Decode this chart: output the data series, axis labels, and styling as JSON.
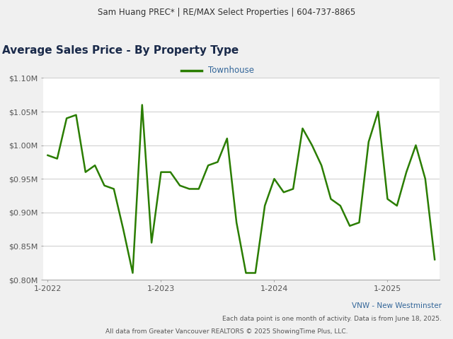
{
  "header": "Sam Huang PREC* | RE/MAX Select Properties | 604-737-8865",
  "title": "Average Sales Price - By Property Type",
  "legend_label": "Townhouse",
  "line_color": "#2a7d00",
  "footer_left": "All data from Greater Vancouver REALTORS © 2025 ShowingTime Plus, LLC.",
  "footer_right_line1": "VNW - New Westminster",
  "footer_right_line2": "Each data point is one month of activity. Data is from June 18, 2025.",
  "ylim": [
    800000,
    1100000
  ],
  "yticks": [
    800000,
    850000,
    900000,
    950000,
    1000000,
    1050000,
    1100000
  ],
  "ytick_labels": [
    "$0.80M",
    "$0.85M",
    "$0.90M",
    "$0.95M",
    "$1.00M",
    "$1.05M",
    "$1.10M"
  ],
  "x_tick_labels": [
    "1-2022",
    "1-2023",
    "1-2024",
    "1-2025"
  ],
  "values": [
    985000,
    980000,
    1040000,
    1045000,
    960000,
    970000,
    940000,
    935000,
    875000,
    810000,
    1060000,
    855000,
    960000,
    960000,
    940000,
    935000,
    935000,
    970000,
    975000,
    1010000,
    885000,
    810000,
    810000,
    910000,
    950000,
    930000,
    935000,
    1025000,
    1000000,
    970000,
    920000,
    910000,
    880000,
    885000,
    1005000,
    1050000,
    920000,
    910000,
    960000,
    1000000,
    950000,
    830000
  ],
  "background_color": "#f0f0f0",
  "plot_bg_color": "#ffffff",
  "grid_color": "#cccccc",
  "header_bg_color": "#e0e0e0"
}
